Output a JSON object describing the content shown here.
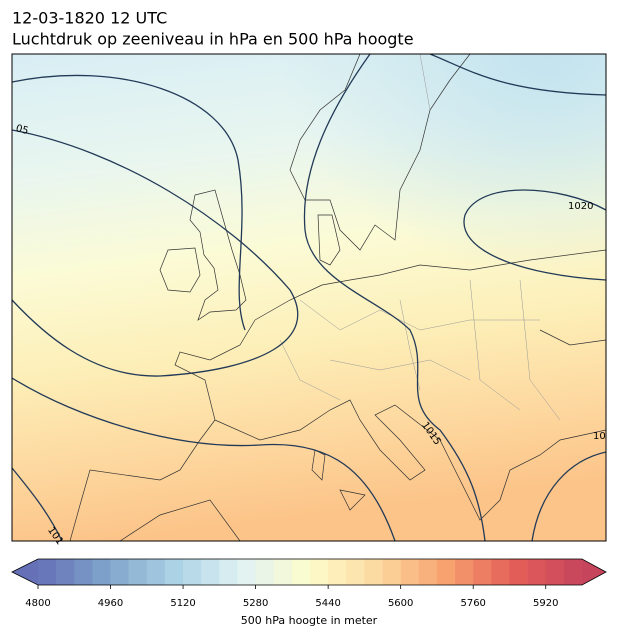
{
  "header": {
    "date": "12-03-1820 12 UTC",
    "title": "Luchtdruk op zeeniveau in hPa en 500 hPa hoogte"
  },
  "contour_labels": [
    "05",
    "1020",
    "1015",
    "10",
    "101"
  ],
  "colorbar": {
    "range": [
      4800,
      6000
    ],
    "ticks": [
      4800,
      4960,
      5120,
      5280,
      5440,
      5600,
      5760,
      5920
    ],
    "label": "500 hPa hoogte in meter"
  }
}
